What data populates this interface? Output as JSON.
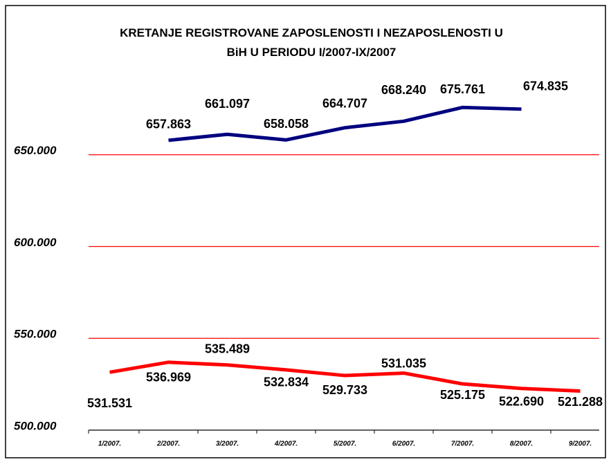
{
  "chart_data": {
    "type": "line",
    "title": "KRETANJE REGISTROVANE ZAPOSLENOSTI I NEZAPOSLENOSTI U BiH U PERIODU I/2007-IX/2007",
    "categories": [
      "1/2007.",
      "2/2007.",
      "3/2007.",
      "4/2007.",
      "5/2007.",
      "6/2007.",
      "7/2007.",
      "8/2007.",
      "9/2007."
    ],
    "series": [
      {
        "color": "#000080",
        "values": [
          null,
          657863,
          661097,
          658058,
          664707,
          668240,
          675761,
          674835,
          null
        ],
        "value_labels": [
          null,
          "657.863",
          "661.097",
          "658.058",
          "664.707",
          "668.240",
          "675.761",
          "674.835",
          null
        ]
      },
      {
        "color": "#ff0000",
        "values": [
          531531,
          536969,
          535489,
          532834,
          529733,
          531035,
          525175,
          522690,
          521288
        ],
        "value_labels": [
          "531.531",
          "536.969",
          "535.489",
          "532.834",
          "529.733",
          "531.035",
          "525.175",
          "522.690",
          "521.288"
        ]
      }
    ],
    "ylim": [
      500000,
      700000
    ],
    "yticks": [
      {
        "value": 500000,
        "label": "500.000"
      },
      {
        "value": 550000,
        "label": "550.000"
      },
      {
        "value": 600000,
        "label": "600.000"
      },
      {
        "value": 650000,
        "label": "650.000"
      }
    ],
    "grid": true,
    "grid_color": "#ff0000"
  }
}
